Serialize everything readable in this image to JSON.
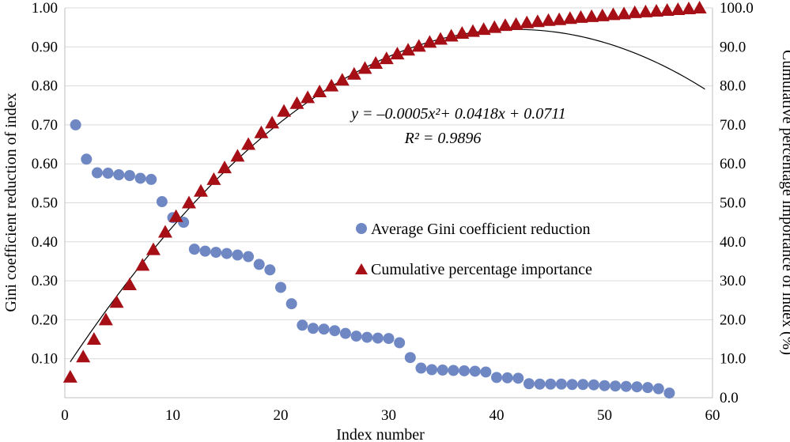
{
  "chart_data": {
    "type": "scatter",
    "x_axis": {
      "label": "Index number",
      "range": [
        0,
        60
      ],
      "ticks": [
        "0",
        "10",
        "20",
        "30",
        "40",
        "50",
        "60"
      ]
    },
    "y_axis_left": {
      "label": "Gini coefficient reduction of index",
      "range": [
        0,
        1.0
      ],
      "ticks": [
        "0.10",
        "0.20",
        "0.30",
        "0.40",
        "0.50",
        "0.60",
        "0.70",
        "0.80",
        "0.90",
        "1.00"
      ]
    },
    "y_axis_right": {
      "label": "Cumulative percentage importance of index (%)",
      "range": [
        0,
        100
      ],
      "ticks": [
        "0.0",
        "10.0",
        "20.0",
        "30.0",
        "40.0",
        "50.0",
        "60.0",
        "70.0",
        "80.0",
        "90.0",
        "100.0"
      ]
    },
    "grid": "horizontal",
    "legend_position": "center-right",
    "series": [
      {
        "name": "Average Gini coefficient reduction",
        "marker": "circle",
        "axis": "left",
        "color": "#6f88c4",
        "x": [
          1,
          2,
          3,
          4,
          5,
          6,
          7,
          8,
          9,
          10,
          11,
          12,
          13,
          14,
          15,
          16,
          17,
          18,
          19,
          20,
          21,
          22,
          23,
          24,
          25,
          26,
          27,
          28,
          29,
          30,
          31,
          32,
          33,
          34,
          35,
          36,
          37,
          38,
          39,
          40,
          41,
          42,
          43,
          44,
          45,
          46,
          47,
          48,
          49,
          50,
          51,
          52,
          53,
          54,
          55,
          56
        ],
        "values": [
          0.7,
          0.612,
          0.577,
          0.576,
          0.572,
          0.57,
          0.563,
          0.56,
          0.503,
          0.462,
          0.45,
          0.381,
          0.376,
          0.373,
          0.37,
          0.366,
          0.362,
          0.342,
          0.328,
          0.283,
          0.241,
          0.186,
          0.178,
          0.176,
          0.172,
          0.165,
          0.158,
          0.155,
          0.153,
          0.152,
          0.141,
          0.103,
          0.076,
          0.072,
          0.071,
          0.07,
          0.069,
          0.068,
          0.066,
          0.052,
          0.051,
          0.05,
          0.036,
          0.035,
          0.035,
          0.035,
          0.034,
          0.034,
          0.033,
          0.031,
          0.03,
          0.029,
          0.028,
          0.026,
          0.023,
          0.012
        ]
      },
      {
        "name": "Cumulative percentage importance",
        "marker": "triangle",
        "axis": "right",
        "color": "#a50f15",
        "x": [
          0.5,
          1.7,
          2.7,
          3.8,
          4.8,
          6.0,
          7.2,
          8.2,
          9.3,
          10.3,
          11.5,
          12.6,
          13.8,
          14.8,
          16.0,
          17.0,
          18.2,
          19.2,
          20.3,
          21.5,
          22.5,
          23.6,
          24.7,
          25.7,
          26.8,
          27.8,
          28.8,
          29.8,
          30.8,
          31.8,
          32.8,
          33.8,
          34.8,
          35.8,
          36.8,
          37.8,
          38.8,
          39.8,
          40.8,
          41.8,
          42.8,
          43.8,
          44.8,
          45.8,
          46.8,
          47.8,
          48.8,
          49.8,
          50.8,
          51.8,
          52.8,
          53.8,
          54.8,
          55.8,
          56.8,
          57.8,
          58.8
        ],
        "values": [
          5.3,
          10.5,
          15.0,
          20.0,
          24.5,
          29.0,
          34.0,
          38.0,
          42.5,
          46.5,
          50.0,
          53.0,
          56.0,
          59.0,
          62.0,
          65.0,
          68.0,
          70.5,
          73.5,
          75.5,
          77.0,
          78.5,
          80.0,
          81.5,
          83.0,
          84.5,
          85.8,
          87.0,
          88.2,
          89.2,
          90.2,
          91.2,
          92.0,
          92.8,
          93.5,
          94.0,
          94.5,
          95.0,
          95.5,
          95.8,
          96.2,
          96.5,
          96.8,
          97.0,
          97.3,
          97.6,
          97.8,
          98.0,
          98.3,
          98.5,
          98.8,
          99.0,
          99.2,
          99.4,
          99.6,
          99.8,
          100.0
        ]
      }
    ],
    "trendline": {
      "equation": "y = –0.0005x²+ 0.0418x + 0.0711",
      "r2": "R² = 0.9896",
      "coefficients": {
        "a": -0.0005,
        "b": 0.0418,
        "c": 0.0711
      },
      "x_range": [
        0.5,
        59.3
      ],
      "axis": "left"
    }
  }
}
